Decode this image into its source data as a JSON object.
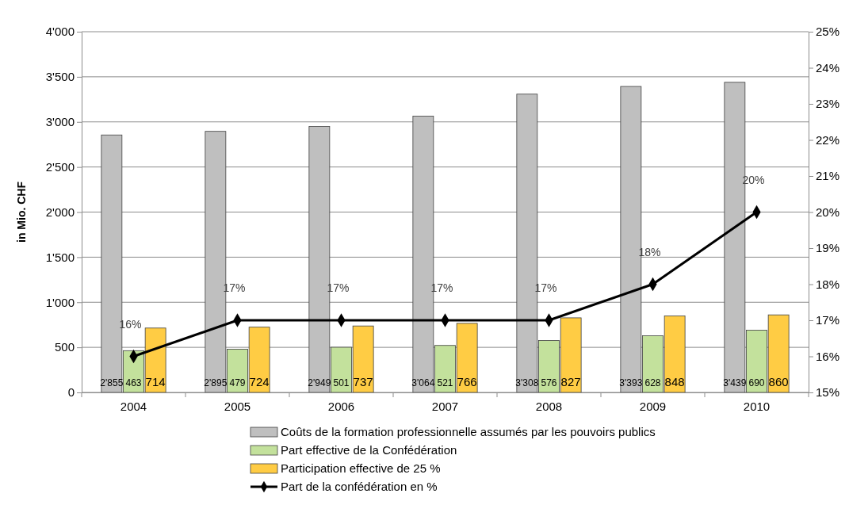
{
  "chart_data": {
    "type": "bar",
    "ylabel": "in Mio. CHF",
    "categories": [
      "2004",
      "2005",
      "2006",
      "2007",
      "2008",
      "2009",
      "2010"
    ],
    "series": [
      {
        "name": "Coûts de la formation professionnelle assumés par les pouvoirs publics",
        "color": "#bfbfbf",
        "values": [
          2855,
          2895,
          2949,
          3064,
          3308,
          3393,
          3439
        ],
        "value_labels": [
          "2'855",
          "2'895",
          "2'949",
          "3'064",
          "3'308",
          "3'393",
          "3'439"
        ]
      },
      {
        "name": "Part effective de la Confédération",
        "color": "#c3e19c",
        "values": [
          463,
          479,
          501,
          521,
          576,
          628,
          690
        ],
        "value_labels": [
          "463",
          "479",
          "501",
          "521",
          "576",
          "628",
          "690"
        ]
      },
      {
        "name": "Participation effective de 25 %",
        "color": "#ffcc44",
        "values": [
          714,
          724,
          737,
          766,
          827,
          848,
          860
        ],
        "value_labels": [
          "714",
          "724",
          "737",
          "766",
          "827",
          "848",
          "860"
        ]
      },
      {
        "name": "Part de la confédération en %",
        "type": "line",
        "axis": "y2",
        "color": "#000000",
        "marker": "diamond",
        "values": [
          16,
          17,
          17,
          17,
          17,
          18,
          20
        ],
        "value_labels": [
          "16%",
          "17%",
          "17%",
          "17%",
          "17%",
          "18%",
          "20%"
        ]
      }
    ],
    "ylim": [
      0,
      4000
    ],
    "yticks": [
      {
        "value": 0,
        "label": "0"
      },
      {
        "value": 500,
        "label": "500"
      },
      {
        "value": 1000,
        "label": "1'000"
      },
      {
        "value": 1500,
        "label": "1'500"
      },
      {
        "value": 2000,
        "label": "2'000"
      },
      {
        "value": 2500,
        "label": "2'500"
      },
      {
        "value": 3000,
        "label": "3'000"
      },
      {
        "value": 3500,
        "label": "3'500"
      },
      {
        "value": 4000,
        "label": "4'000"
      }
    ],
    "y2lim": [
      15,
      25
    ],
    "y2ticks": [
      {
        "value": 15,
        "label": "15%"
      },
      {
        "value": 16,
        "label": "16%"
      },
      {
        "value": 17,
        "label": "17%"
      },
      {
        "value": 18,
        "label": "18%"
      },
      {
        "value": 19,
        "label": "19%"
      },
      {
        "value": 20,
        "label": "20%"
      },
      {
        "value": 21,
        "label": "21%"
      },
      {
        "value": 22,
        "label": "22%"
      },
      {
        "value": 23,
        "label": "23%"
      },
      {
        "value": 24,
        "label": "24%"
      },
      {
        "value": 25,
        "label": "25%"
      }
    ],
    "grid": "y",
    "legend": "bottom"
  }
}
